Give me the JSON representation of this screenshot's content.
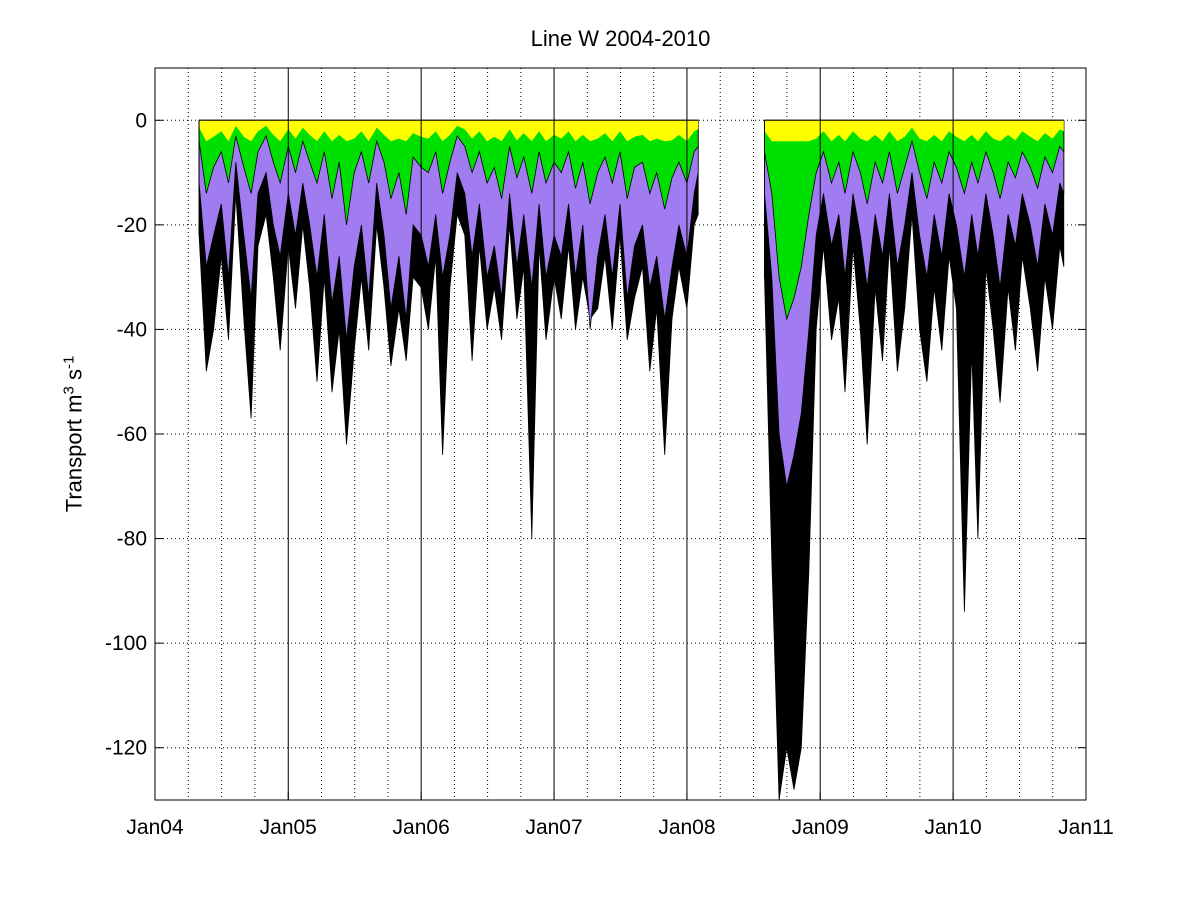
{
  "chart_data": {
    "type": "area",
    "title": "Line W 2004-2010",
    "ylabel": {
      "base": "Transport  m",
      "exp1": "3",
      "mid": " s",
      "exp2": "-1"
    },
    "xlabel": "",
    "x_axis": {
      "type": "date",
      "range": [
        "2004-01-01",
        "2011-01-01"
      ],
      "ticks": [
        "2004-01-01",
        "2005-01-01",
        "2006-01-01",
        "2007-01-01",
        "2008-01-01",
        "2009-01-01",
        "2010-01-01",
        "2011-01-01"
      ],
      "tick_labels": [
        "Jan04",
        "Jan05",
        "Jan06",
        "Jan07",
        "Jan08",
        "Jan09",
        "Jan10",
        "Jan11"
      ]
    },
    "y_axis": {
      "range": [
        -130,
        10
      ],
      "ticks": [
        0,
        -20,
        -40,
        -60,
        -80,
        -100,
        -120
      ],
      "tick_labels": [
        "0",
        "-20",
        "-40",
        "-60",
        "-80",
        "-100",
        "-120"
      ]
    },
    "grid": true,
    "stacking": "cumulative, negative downward",
    "layer_colors": [
      "#ffff00",
      "#00e000",
      "#a07cf0",
      "#000000"
    ],
    "segments": [
      {
        "start": "2004-05-01",
        "end": "2008-02-01",
        "x": [
          "2004-05-01",
          "2004-05-21",
          "2004-06-10",
          "2004-07-01",
          "2004-07-21",
          "2004-08-10",
          "2004-09-01",
          "2004-09-21",
          "2004-10-10",
          "2004-11-01",
          "2004-11-21",
          "2004-12-10",
          "2005-01-01",
          "2005-01-21",
          "2005-02-10",
          "2005-03-01",
          "2005-03-21",
          "2005-04-10",
          "2005-05-01",
          "2005-05-21",
          "2005-06-10",
          "2005-07-01",
          "2005-07-21",
          "2005-08-10",
          "2005-09-01",
          "2005-09-21",
          "2005-10-10",
          "2005-11-01",
          "2005-11-21",
          "2005-12-10",
          "2006-01-01",
          "2006-01-21",
          "2006-02-10",
          "2006-03-01",
          "2006-03-21",
          "2006-04-10",
          "2006-05-01",
          "2006-05-21",
          "2006-06-10",
          "2006-07-01",
          "2006-07-21",
          "2006-08-10",
          "2006-09-01",
          "2006-09-21",
          "2006-10-10",
          "2006-11-01",
          "2006-11-21",
          "2006-12-10",
          "2007-01-01",
          "2007-01-21",
          "2007-02-10",
          "2007-03-01",
          "2007-03-21",
          "2007-04-10",
          "2007-05-01",
          "2007-05-21",
          "2007-06-10",
          "2007-07-01",
          "2007-07-21",
          "2007-08-10",
          "2007-09-01",
          "2007-09-21",
          "2007-10-10",
          "2007-11-01",
          "2007-11-21",
          "2007-12-10",
          "2008-01-01",
          "2008-01-21",
          "2008-02-01"
        ],
        "green_boundary": [
          -4,
          -14,
          -9,
          -6,
          -12,
          -3,
          -9,
          -14,
          -6,
          -3,
          -8,
          -12,
          -5,
          -10,
          -4,
          -8,
          -12,
          -6,
          -15,
          -8,
          -20,
          -10,
          -6,
          -12,
          -4,
          -8,
          -15,
          -10,
          -18,
          -7,
          -9,
          -10,
          -6,
          -14,
          -8,
          -3,
          -5,
          -10,
          -6,
          -12,
          -9,
          -15,
          -5,
          -11,
          -7,
          -14,
          -6,
          -12,
          -8,
          -10,
          -6,
          -13,
          -8,
          -16,
          -10,
          -7,
          -12,
          -6,
          -15,
          -9,
          -8,
          -14,
          -10,
          -17,
          -11,
          -8,
          -12,
          -6,
          -5
        ],
        "purple_boundary": [
          -12,
          -28,
          -22,
          -16,
          -30,
          -8,
          -22,
          -34,
          -14,
          -10,
          -20,
          -26,
          -14,
          -22,
          -12,
          -20,
          -30,
          -18,
          -35,
          -26,
          -42,
          -28,
          -20,
          -34,
          -12,
          -22,
          -36,
          -26,
          -38,
          -20,
          -22,
          -28,
          -18,
          -30,
          -22,
          -10,
          -14,
          -26,
          -16,
          -30,
          -24,
          -34,
          -14,
          -28,
          -18,
          -32,
          -16,
          -30,
          -22,
          -26,
          -16,
          -30,
          -20,
          -40,
          -26,
          -18,
          -30,
          -16,
          -34,
          -24,
          -20,
          -32,
          -26,
          -38,
          -28,
          -20,
          -26,
          -14,
          -10
        ],
        "total": [
          -22,
          -48,
          -40,
          -26,
          -42,
          -14,
          -38,
          -57,
          -24,
          -18,
          -30,
          -44,
          -24,
          -36,
          -20,
          -32,
          -50,
          -30,
          -52,
          -40,
          -62,
          -44,
          -30,
          -44,
          -20,
          -32,
          -47,
          -36,
          -46,
          -30,
          -32,
          -40,
          -26,
          -64,
          -32,
          -18,
          -22,
          -46,
          -24,
          -40,
          -32,
          -42,
          -20,
          -38,
          -28,
          -80,
          -24,
          -42,
          -30,
          -38,
          -24,
          -40,
          -30,
          -38,
          -36,
          -26,
          -40,
          -22,
          -42,
          -34,
          -28,
          -48,
          -36,
          -64,
          -38,
          -28,
          -36,
          -20,
          -18
        ]
      },
      {
        "start": "2008-08-01",
        "end": "2010-11-01",
        "x": [
          "2008-08-01",
          "2008-08-21",
          "2008-09-10",
          "2008-10-01",
          "2008-10-21",
          "2008-11-10",
          "2008-12-01",
          "2008-12-21",
          "2009-01-10",
          "2009-02-01",
          "2009-02-21",
          "2009-03-10",
          "2009-04-01",
          "2009-04-21",
          "2009-05-10",
          "2009-06-01",
          "2009-06-21",
          "2009-07-10",
          "2009-08-01",
          "2009-08-21",
          "2009-09-10",
          "2009-10-01",
          "2009-10-21",
          "2009-11-10",
          "2009-12-01",
          "2009-12-21",
          "2010-01-10",
          "2010-02-01",
          "2010-02-21",
          "2010-03-10",
          "2010-04-01",
          "2010-04-21",
          "2010-05-10",
          "2010-06-01",
          "2010-06-21",
          "2010-07-10",
          "2010-08-01",
          "2010-08-21",
          "2010-09-10",
          "2010-10-01",
          "2010-10-21",
          "2010-11-01"
        ],
        "green_boundary": [
          -6,
          -14,
          -30,
          -38,
          -34,
          -28,
          -18,
          -10,
          -6,
          -12,
          -8,
          -14,
          -6,
          -10,
          -16,
          -8,
          -12,
          -6,
          -14,
          -9,
          -4,
          -10,
          -15,
          -8,
          -12,
          -6,
          -9,
          -14,
          -8,
          -12,
          -6,
          -10,
          -15,
          -8,
          -11,
          -6,
          -9,
          -13,
          -7,
          -10,
          -5,
          -6
        ],
        "purple_boundary": [
          -14,
          -30,
          -60,
          -70,
          -64,
          -56,
          -40,
          -22,
          -14,
          -24,
          -18,
          -30,
          -14,
          -22,
          -32,
          -18,
          -26,
          -14,
          -28,
          -20,
          -10,
          -22,
          -30,
          -18,
          -26,
          -14,
          -20,
          -30,
          -18,
          -26,
          -14,
          -22,
          -32,
          -18,
          -24,
          -14,
          -20,
          -28,
          -16,
          -22,
          -12,
          -14
        ],
        "total": [
          -30,
          -84,
          -130,
          -120,
          -128,
          -120,
          -86,
          -40,
          -24,
          -42,
          -34,
          -52,
          -24,
          -40,
          -62,
          -32,
          -46,
          -24,
          -48,
          -36,
          -18,
          -40,
          -50,
          -32,
          -44,
          -26,
          -36,
          -94,
          -44,
          -80,
          -28,
          -40,
          -54,
          -32,
          -44,
          -26,
          -36,
          -48,
          -30,
          -40,
          -24,
          -28
        ]
      }
    ]
  }
}
